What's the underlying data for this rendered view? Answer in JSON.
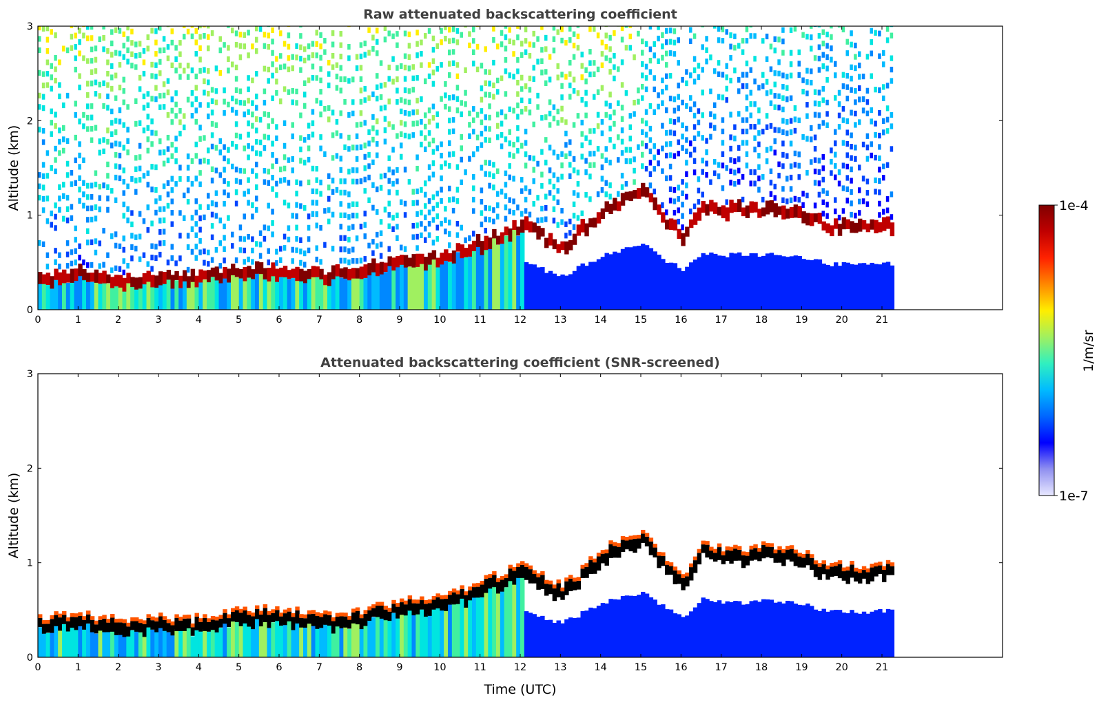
{
  "figure": {
    "colorbar": {
      "max_label": "1e-4",
      "min_label": "1e-7",
      "label": "1/m/sr"
    },
    "xlabel": "Time (UTC)"
  },
  "chart_data": [
    {
      "type": "heatmap",
      "title": "Raw attenuated backscattering coefficient",
      "xlabel": "",
      "ylabel": "Altitude (km)",
      "xlim": [
        0,
        24
      ],
      "ylim": [
        0,
        3
      ],
      "x_ticks": [
        "0",
        "1",
        "2",
        "3",
        "4",
        "5",
        "6",
        "7",
        "8",
        "9",
        "10",
        "11",
        "12",
        "13",
        "14",
        "15",
        "16",
        "17",
        "18",
        "19",
        "20",
        "21"
      ],
      "y_ticks": [
        "0",
        "1",
        "2",
        "3"
      ],
      "data_end_time": 21.3,
      "colorscale": "jet (log 1e-7 to 1e-4 1/m/sr)",
      "boundary_layer_top_km": [
        [
          0,
          0.32
        ],
        [
          1,
          0.38
        ],
        [
          2,
          0.3
        ],
        [
          3,
          0.33
        ],
        [
          4,
          0.32
        ],
        [
          5,
          0.42
        ],
        [
          6,
          0.4
        ],
        [
          7,
          0.35
        ],
        [
          8,
          0.4
        ],
        [
          9,
          0.5
        ],
        [
          10,
          0.55
        ],
        [
          11,
          0.7
        ],
        [
          12,
          0.9
        ],
        [
          13,
          0.65
        ],
        [
          14,
          1.05
        ],
        [
          15,
          1.25
        ],
        [
          16,
          0.75
        ],
        [
          16.5,
          1.1
        ],
        [
          17,
          1.05
        ],
        [
          18,
          1.07
        ],
        [
          19,
          1.02
        ],
        [
          19.6,
          0.88
        ]
      ]
    },
    {
      "type": "heatmap",
      "title": "Attenuated backscattering coefficient (SNR-screened)",
      "xlabel": "Time (UTC)",
      "ylabel": "Altitude (km)",
      "xlim": [
        0,
        24
      ],
      "ylim": [
        0,
        3
      ],
      "x_ticks": [
        "0",
        "1",
        "2",
        "3",
        "4",
        "5",
        "6",
        "7",
        "8",
        "9",
        "10",
        "11",
        "12",
        "13",
        "14",
        "15",
        "16",
        "17",
        "18",
        "19",
        "20",
        "21"
      ],
      "y_ticks": [
        "0",
        "1",
        "2",
        "3"
      ],
      "data_end_time": 21.3,
      "colorscale": "jet (log 1e-7 to 1e-4 1/m/sr)",
      "boundary_layer_top_km": [
        [
          0,
          0.32
        ],
        [
          1,
          0.38
        ],
        [
          2,
          0.3
        ],
        [
          3,
          0.33
        ],
        [
          4,
          0.32
        ],
        [
          5,
          0.42
        ],
        [
          6,
          0.4
        ],
        [
          7,
          0.35
        ],
        [
          8,
          0.4
        ],
        [
          9,
          0.5
        ],
        [
          10,
          0.55
        ],
        [
          11,
          0.7
        ],
        [
          12,
          0.9
        ],
        [
          13,
          0.65
        ],
        [
          14,
          1.05
        ],
        [
          15,
          1.25
        ],
        [
          16,
          0.75
        ],
        [
          16.5,
          1.1
        ],
        [
          17,
          1.05
        ],
        [
          18,
          1.07
        ],
        [
          19,
          1.02
        ],
        [
          19.6,
          0.88
        ]
      ]
    }
  ],
  "colors": {
    "title": "#404040",
    "colorbar_stops": [
      "#e8e8ff",
      "#9090f0",
      "#0000ff",
      "#0066ff",
      "#00bbff",
      "#30f0c0",
      "#a0f060",
      "#ffee00",
      "#ff8800",
      "#ff2200",
      "#c00000",
      "#800000"
    ]
  }
}
